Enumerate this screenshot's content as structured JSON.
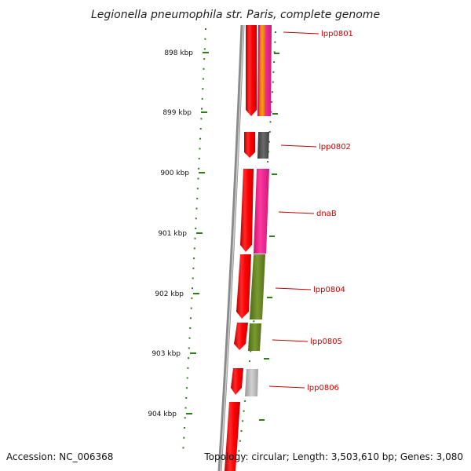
{
  "title": "Legionella pneumophila str. Paris, complete genome",
  "accession": "Accession: NC_006368",
  "topology": "Topology: circular; Length: 3,503,610 bp; Genes: 3,080",
  "ticks": [
    "898 kbp",
    "899 kbp",
    "900 kbp",
    "901 kbp",
    "902 kbp",
    "903 kbp",
    "904 kbp"
  ],
  "genes": [
    "lpp0801",
    "lpp0802",
    "dnaB",
    "lpp0804",
    "lpp0805",
    "lpp0806"
  ],
  "colors": {
    "forward_cds": "#ff0000",
    "tick": "#2e7d1e",
    "backbone": "#8a8a8a",
    "label": "#cc0000",
    "magenta": "#ff1493",
    "orange": "#ff8c00",
    "dark_gray": "#555555",
    "olive": "#6b8e23",
    "light_gray": "#b5b5b5"
  }
}
